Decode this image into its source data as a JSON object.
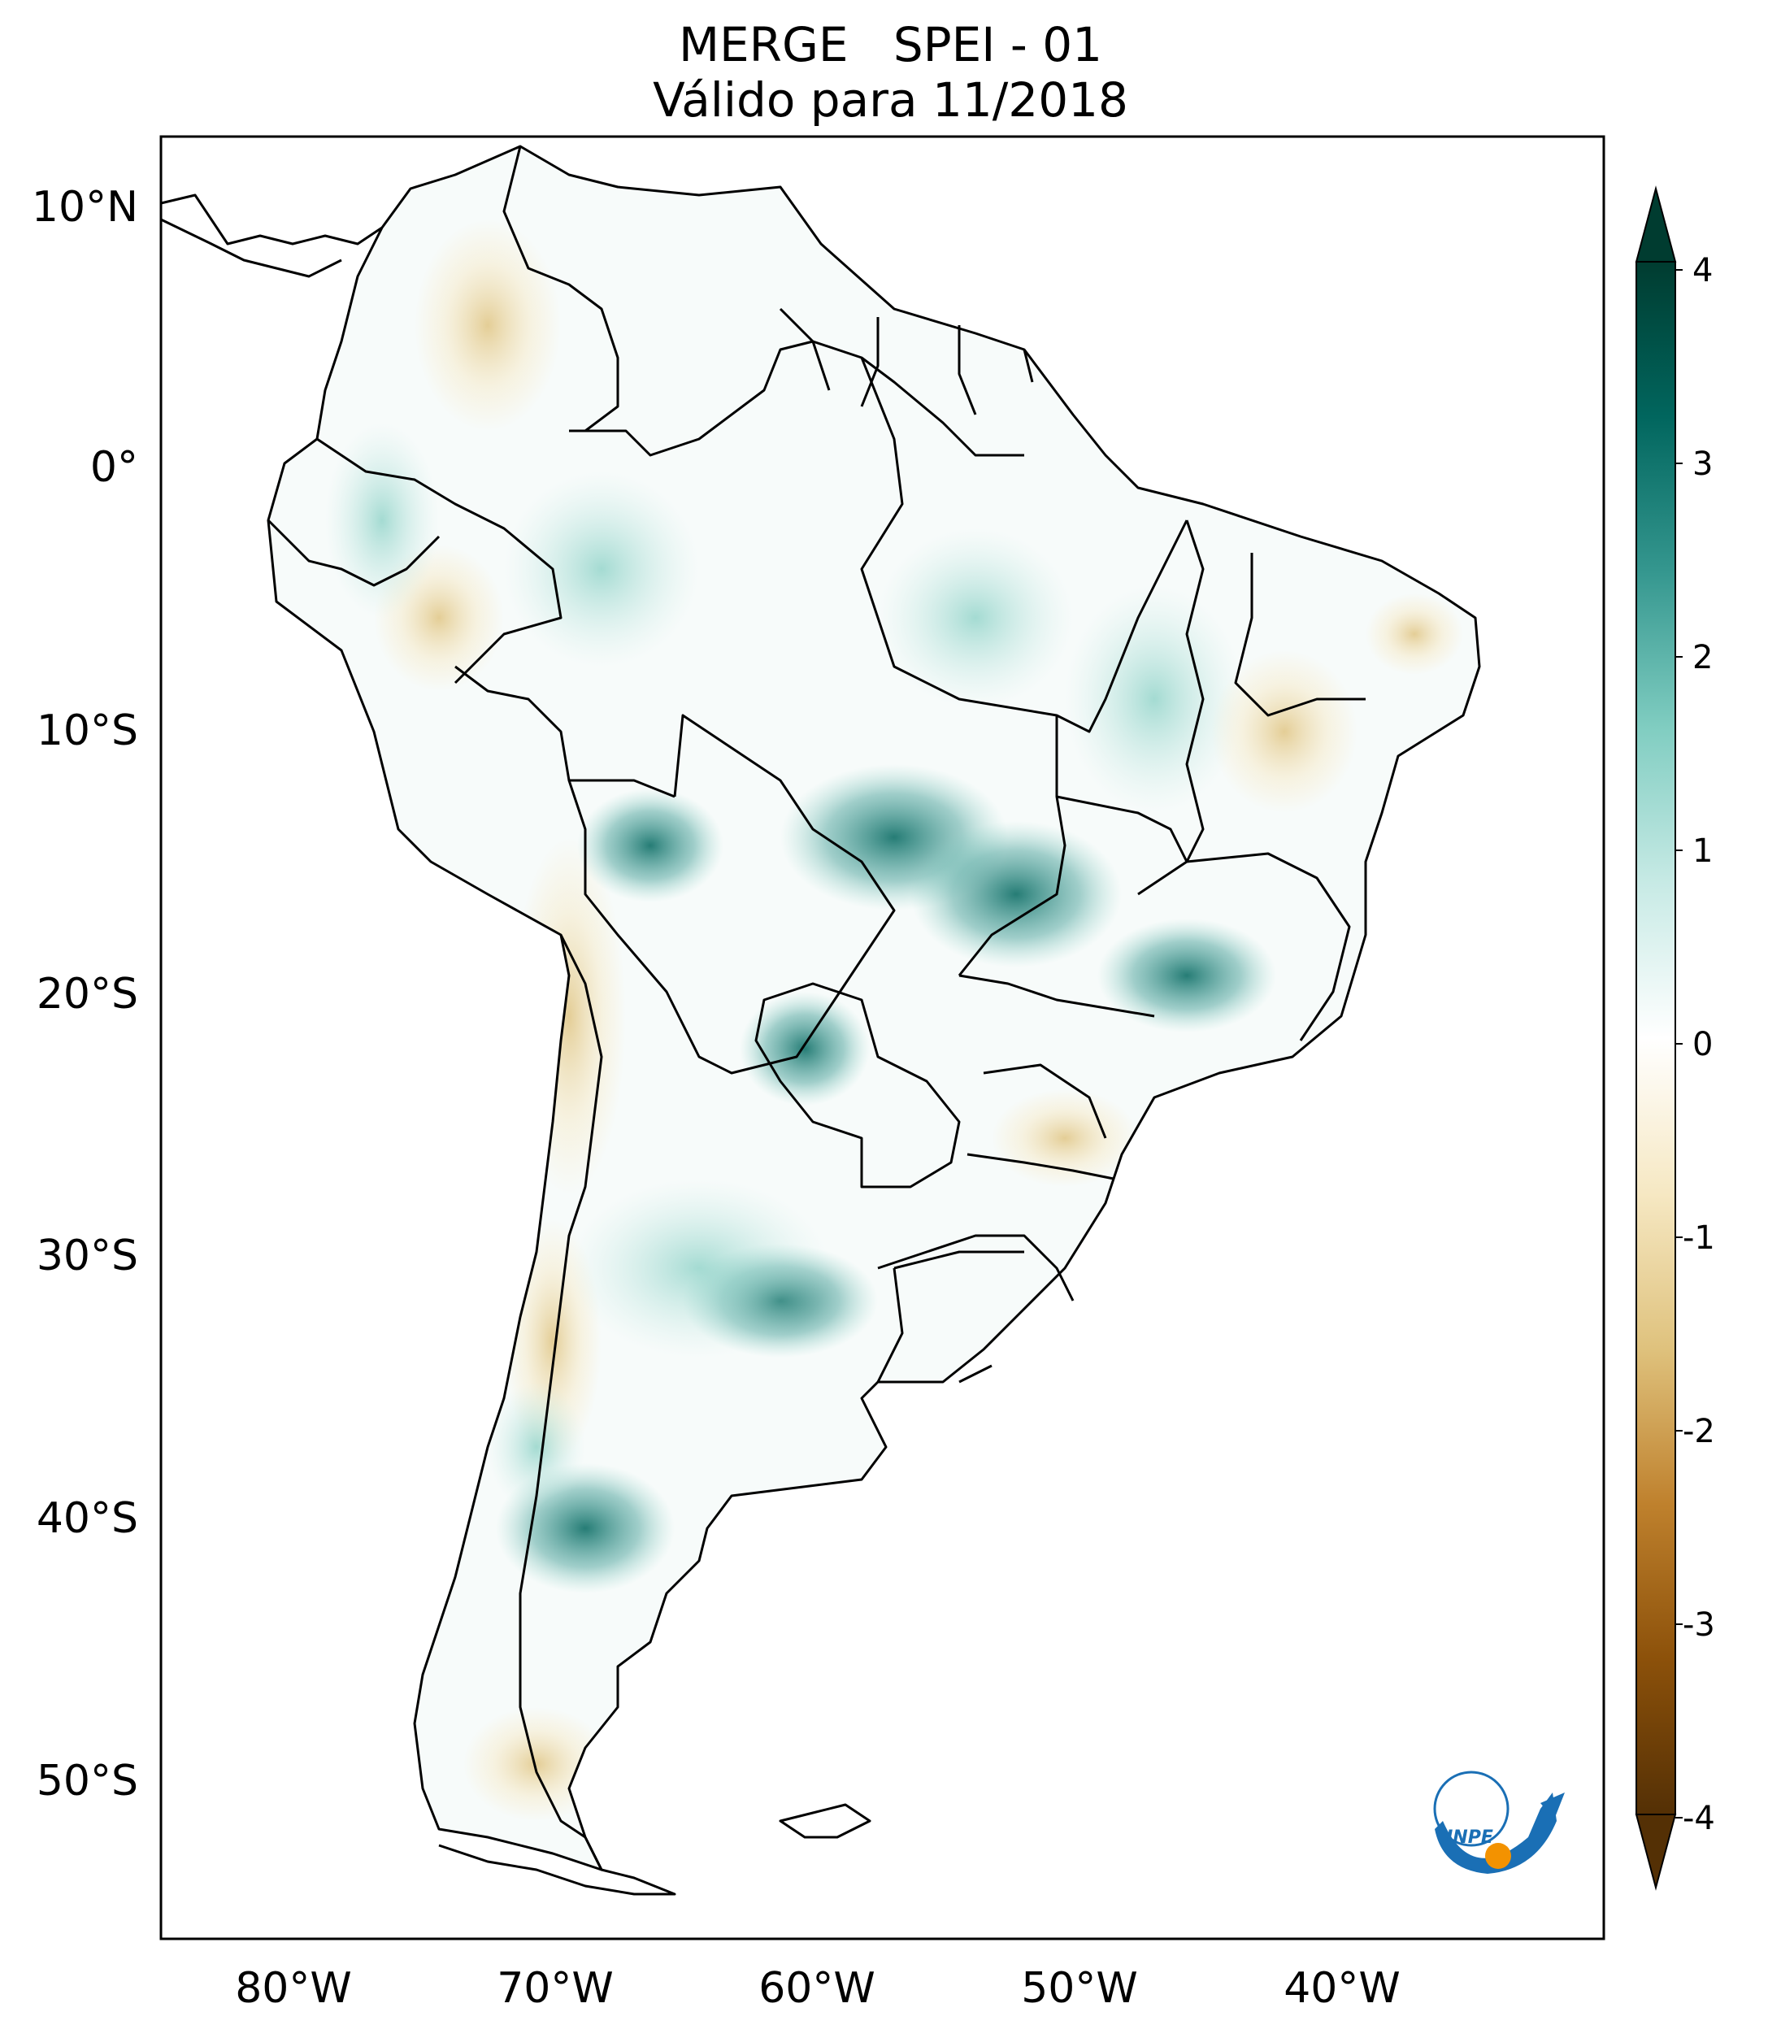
{
  "title": {
    "line1": "MERGE   SPEI - 01",
    "line2": "Válido para 11/2018"
  },
  "map": {
    "lat_ticks": [
      "10°N",
      "0°",
      "10°S",
      "20°S",
      "30°S",
      "40°S",
      "50°S"
    ],
    "lon_ticks": [
      "80°W",
      "70°W",
      "60°W",
      "50°W",
      "40°W"
    ],
    "land_color": "#ffffff",
    "ocean_color": "#ffffff",
    "border_color": "#000000"
  },
  "colorbar": {
    "labels": [
      "4",
      "3",
      "2",
      "1",
      "0",
      "-1",
      "-2",
      "-3",
      "-4"
    ],
    "colormap": "BrBG",
    "extend": "both",
    "colors": {
      "max": "#003c30",
      "high": "#01665e",
      "mid_high": "#35978f",
      "low_high": "#80cdc1",
      "light_high": "#c7eae5",
      "zero": "#ffffff",
      "light_low": "#f6e8c3",
      "low_low": "#dfc27d",
      "mid_low": "#bf812d",
      "low": "#8c510a",
      "min": "#543005"
    }
  },
  "logo": {
    "text": "INPE",
    "colors": {
      "arc": "#1a6fb5",
      "dot": "#f39200"
    }
  }
}
